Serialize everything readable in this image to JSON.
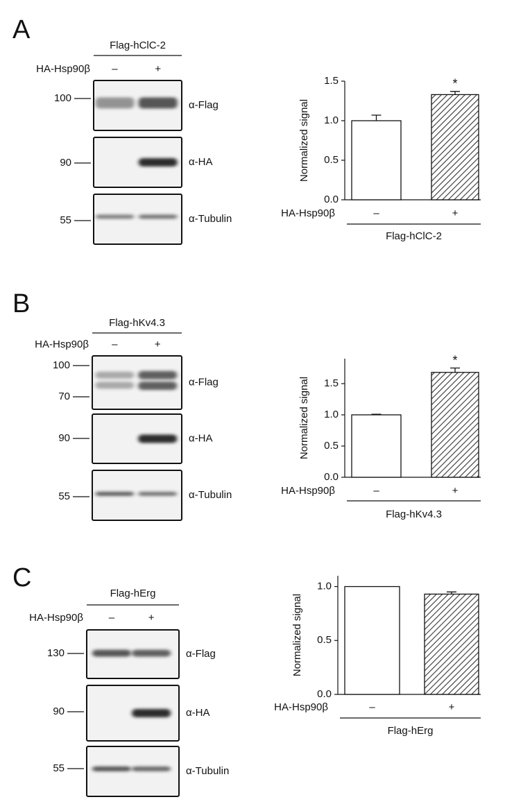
{
  "panels": [
    {
      "label": "A",
      "construct": "Flag-hClC-2",
      "treatment": "HA-Hsp90β",
      "lanes": [
        "–",
        "+"
      ],
      "blots": [
        {
          "markers": [
            100
          ],
          "antibody": "α-Flag"
        },
        {
          "markers": [
            90
          ],
          "antibody": "α-HA"
        },
        {
          "markers": [
            55
          ],
          "antibody": "α-Tubulin"
        }
      ]
    },
    {
      "label": "B",
      "construct": "Flag-hKv4.3",
      "treatment": "HA-Hsp90β",
      "lanes": [
        "–",
        "+"
      ],
      "blots": [
        {
          "markers": [
            100,
            70
          ],
          "antibody": "α-Flag"
        },
        {
          "markers": [
            90
          ],
          "antibody": "α-HA"
        },
        {
          "markers": [
            55
          ],
          "antibody": "α-Tubulin"
        }
      ]
    },
    {
      "label": "C",
      "construct": "Flag-hErg",
      "treatment": "HA-Hsp90β",
      "lanes": [
        "–",
        "+"
      ],
      "blots": [
        {
          "markers": [
            130
          ],
          "antibody": "α-Flag"
        },
        {
          "markers": [
            90
          ],
          "antibody": "α-HA"
        },
        {
          "markers": [
            55
          ],
          "antibody": "α-Tubulin"
        }
      ]
    }
  ],
  "chart_data": [
    {
      "type": "bar",
      "ylabel": "Normalized signal",
      "category_axis_label": "HA-Hsp90β",
      "group_label": "Flag-hClC-2",
      "categories": [
        "–",
        "+"
      ],
      "values": [
        1.0,
        1.33
      ],
      "errors": [
        0.07,
        0.04
      ],
      "annotations": [
        null,
        "*"
      ],
      "colors": [
        "#ffffff",
        "#ffffff"
      ],
      "hatch": [
        false,
        true
      ],
      "ylim": [
        0,
        1.5
      ],
      "yticks": [
        {
          "value": 0,
          "label": "0.0"
        },
        {
          "value": 0.5,
          "label": "0.5"
        },
        {
          "value": 1,
          "label": "1.0"
        },
        {
          "value": 1.5,
          "label": "1.5"
        }
      ]
    },
    {
      "type": "bar",
      "ylabel": "Normalized signal",
      "category_axis_label": "HA-Hsp90β",
      "group_label": "Flag-hKv4.3",
      "categories": [
        "–",
        "+"
      ],
      "values": [
        1.0,
        1.68
      ],
      "errors": [
        0.01,
        0.07
      ],
      "annotations": [
        null,
        "*"
      ],
      "colors": [
        "#ffffff",
        "#ffffff"
      ],
      "hatch": [
        false,
        true
      ],
      "ylim": [
        0,
        1.9
      ],
      "yticks": [
        {
          "value": 0,
          "label": "0.0"
        },
        {
          "value": 0.5,
          "label": "0.5"
        },
        {
          "value": 1,
          "label": "1.0"
        },
        {
          "value": 1.5,
          "label": "1.5"
        }
      ]
    },
    {
      "type": "bar",
      "ylabel": "Normalized signal",
      "category_axis_label": "HA-Hsp90β",
      "group_label": "Flag-hErg",
      "categories": [
        "–",
        "+"
      ],
      "values": [
        1.0,
        0.93
      ],
      "errors": [
        null,
        0.02
      ],
      "colors": [
        "#ffffff",
        "#ffffff"
      ],
      "hatch": [
        false,
        true
      ],
      "ylim": [
        0,
        1.1
      ],
      "yticks": [
        {
          "value": 0,
          "label": "0.0"
        },
        {
          "value": 0.5,
          "label": "0.5"
        },
        {
          "value": 1,
          "label": "1.0"
        }
      ]
    }
  ]
}
